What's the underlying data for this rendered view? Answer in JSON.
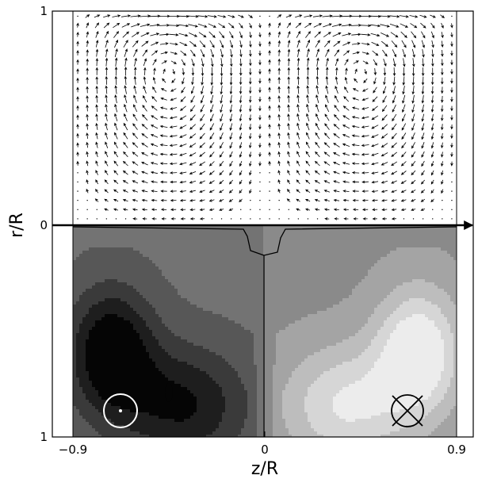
{
  "chart_data": {
    "type": "vector-field-with-filled-contour",
    "xlabel": "z/R",
    "ylabel": "r/R",
    "xlim": [
      -0.9,
      0.9
    ],
    "x_ticks": [
      {
        "value": -0.9,
        "label": "−0.9"
      },
      {
        "value": 0,
        "label": "0"
      },
      {
        "value": 0.9,
        "label": "0.9"
      }
    ],
    "y_ticks_upper": [
      {
        "value": 1,
        "label": "1"
      },
      {
        "value": 0,
        "label": "0"
      }
    ],
    "y_ticks_lower": [
      {
        "value": 1,
        "label": "1"
      }
    ],
    "upper_panel": {
      "content": "velocity vectors",
      "r_range": [
        0,
        1
      ],
      "vortices": [
        {
          "z": -0.5,
          "r": 0.78,
          "sense": "counter-clockwise"
        },
        {
          "z": 0.5,
          "r": 0.78,
          "sense": "clockwise"
        }
      ],
      "flow_near_axis": "toward z = 0",
      "flow_near_wall": "away from z = 0"
    },
    "lower_panel": {
      "content": "azimuthal field contours",
      "r_range": [
        0,
        1
      ],
      "left_half": "negative values (dark)",
      "right_half": "positive values (light)",
      "symbols": [
        {
          "name": "out-of-plane",
          "z": -0.67,
          "r": 0.87
        },
        {
          "name": "into-plane",
          "z": 0.67,
          "r": 0.87
        }
      ]
    },
    "colors": {
      "contour_levels": [
        "#050505",
        "#1e1e1e",
        "#3a3a3a",
        "#575757",
        "#737373",
        "#8a8a8a",
        "#a4a4a4",
        "#bdbdbd",
        "#d6d6d6",
        "#ececec"
      ]
    }
  }
}
